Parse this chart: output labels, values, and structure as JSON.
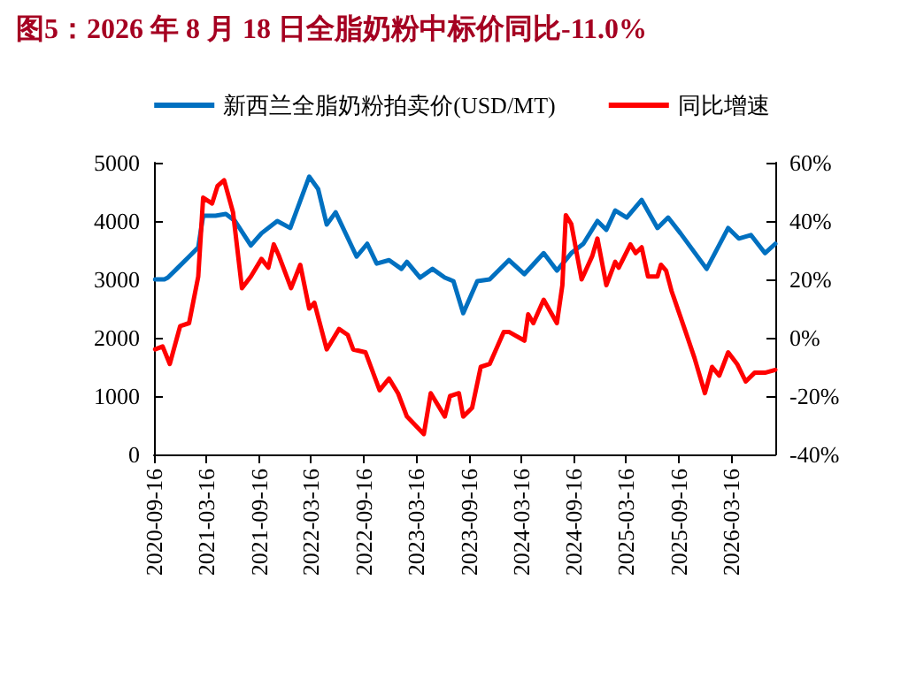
{
  "chart_data": {
    "type": "line",
    "title": "图5：2026 年 8 月 18 日全脂奶粉中标价同比-11.0%",
    "xlim": [
      "2020-09-16",
      "2026-08-18"
    ],
    "xticks": [
      "2020-09-16",
      "2021-03-16",
      "2021-09-16",
      "2022-03-16",
      "2022-09-16",
      "2023-03-16",
      "2023-09-16",
      "2024-03-16",
      "2024-09-16",
      "2025-03-16",
      "2025-09-16",
      "2026-03-16"
    ],
    "ylim": [
      0,
      5000
    ],
    "yticks": [
      0,
      1000,
      2000,
      3000,
      4000,
      5000
    ],
    "y2lim": [
      -40,
      60
    ],
    "y2ticks": [
      {
        "value": -40,
        "label": "-40%"
      },
      {
        "value": -20,
        "label": "-20%"
      },
      {
        "value": 0,
        "label": "0%"
      },
      {
        "value": 20,
        "label": "20%"
      },
      {
        "value": 40,
        "label": "40%"
      },
      {
        "value": 60,
        "label": "60%"
      }
    ],
    "grid": false,
    "legend": "top",
    "marker": "none",
    "line_style": "solid",
    "series": [
      {
        "name": "新西兰全脂奶粉拍卖价(USD/MT)",
        "color": "#0070c0",
        "x": [
          "2020-09-20",
          "2020-10-22",
          "2020-11-03",
          "2020-12-04",
          "2021-01-16",
          "2021-02-17",
          "2021-03-06",
          "2021-04-18",
          "2021-05-24",
          "2021-06-25",
          "2021-08-19",
          "2021-09-25",
          "2021-11-19",
          "2022-01-03",
          "2022-03-10",
          "2022-04-10",
          "2022-05-10",
          "2022-06-10",
          "2022-08-22",
          "2022-09-28",
          "2022-10-31",
          "2022-12-13",
          "2023-01-25",
          "2023-02-13",
          "2023-03-31",
          "2023-05-13",
          "2023-06-25",
          "2023-07-25",
          "2023-08-28",
          "2023-10-16",
          "2023-11-28",
          "2024-02-03",
          "2024-03-28",
          "2024-06-03",
          "2024-07-19",
          "2024-09-07",
          "2024-10-19",
          "2024-12-07",
          "2025-01-07",
          "2025-02-07",
          "2025-03-19",
          "2025-05-10",
          "2025-07-04",
          "2025-08-10",
          "2025-09-22",
          "2025-12-22",
          "2026-03-07",
          "2026-04-13",
          "2026-05-25",
          "2026-07-13",
          "2026-08-18"
        ],
        "values": [
          3000,
          3000,
          3030,
          3180,
          3390,
          3550,
          4090,
          4090,
          4120,
          4000,
          3580,
          3790,
          4000,
          3880,
          4760,
          4550,
          3940,
          4150,
          3390,
          3610,
          3270,
          3330,
          3180,
          3300,
          3030,
          3180,
          3030,
          2970,
          2420,
          2970,
          3000,
          3330,
          3090,
          3450,
          3150,
          3450,
          3610,
          4000,
          3850,
          4180,
          4060,
          4360,
          3880,
          4060,
          3790,
          3180,
          3880,
          3700,
          3760,
          3450,
          3610
        ]
      },
      {
        "name": "同比增速",
        "color": "#ff0000",
        "axis": "y2",
        "x": [
          "2020-09-20",
          "2020-10-16",
          "2020-11-10",
          "2020-12-16",
          "2021-01-16",
          "2021-02-17",
          "2021-03-06",
          "2021-04-06",
          "2021-04-25",
          "2021-05-18",
          "2021-06-18",
          "2021-07-19",
          "2021-08-19",
          "2021-09-25",
          "2021-10-19",
          "2021-11-07",
          "2021-11-25",
          "2022-01-06",
          "2022-02-07",
          "2022-03-10",
          "2022-03-28",
          "2022-05-10",
          "2022-06-22",
          "2022-07-22",
          "2022-08-10",
          "2022-09-22",
          "2022-11-10",
          "2022-12-13",
          "2023-01-13",
          "2023-02-13",
          "2023-04-13",
          "2023-05-07",
          "2023-06-25",
          "2023-07-13",
          "2023-08-13",
          "2023-08-28",
          "2023-09-28",
          "2023-10-28",
          "2023-11-28",
          "2024-01-16",
          "2024-02-03",
          "2024-03-28",
          "2024-04-10",
          "2024-04-28",
          "2024-06-03",
          "2024-07-19",
          "2024-08-07",
          "2024-08-19",
          "2024-09-07",
          "2024-10-13",
          "2024-11-19",
          "2024-12-07",
          "2025-01-07",
          "2025-02-07",
          "2025-02-19",
          "2025-04-01",
          "2025-04-19",
          "2025-05-10",
          "2025-06-01",
          "2025-07-04",
          "2025-07-16",
          "2025-08-03",
          "2025-08-22",
          "2025-10-10",
          "2025-11-10",
          "2025-12-16",
          "2026-01-10",
          "2026-02-04",
          "2026-03-07",
          "2026-04-07",
          "2026-05-07",
          "2026-06-07",
          "2026-07-13",
          "2026-08-18"
        ],
        "values": [
          -4,
          -3,
          -9,
          4,
          5,
          21,
          48,
          46,
          52,
          54,
          43,
          17,
          21,
          27,
          24,
          32,
          28,
          17,
          25,
          10,
          12,
          -4,
          3,
          1,
          -4,
          -5,
          -18,
          -14,
          -19,
          -27,
          -33,
          -19,
          -27,
          -20,
          -19,
          -27,
          -24,
          -10,
          -9,
          2,
          2,
          -1,
          8,
          5,
          13,
          5,
          18,
          42,
          39,
          20,
          28,
          34,
          18,
          26,
          24,
          32,
          29,
          31,
          21,
          21,
          25,
          23,
          16,
          2,
          -7,
          -19,
          -10,
          -13,
          -5,
          -9,
          -15,
          -12,
          -12,
          -11
        ]
      }
    ]
  }
}
